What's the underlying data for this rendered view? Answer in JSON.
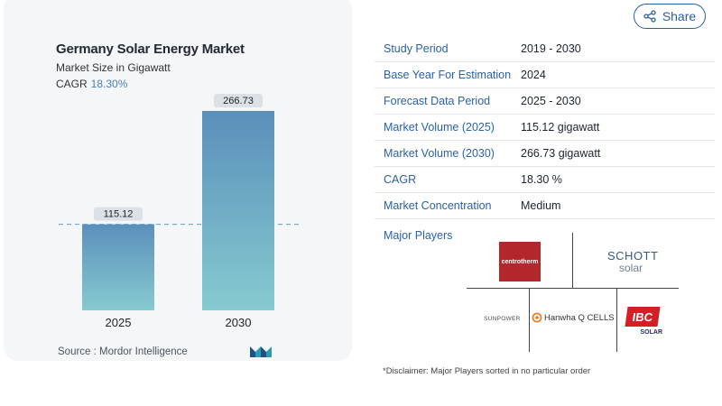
{
  "chart_data": {
    "type": "bar",
    "title": "Germany Solar Energy Market",
    "subtitle": "Market Size in Gigawatt",
    "cagr_label": "CAGR",
    "cagr_value": "18.30%",
    "categories": [
      "2025",
      "2030"
    ],
    "values": [
      115.12,
      266.73
    ],
    "value_labels": [
      "115.12",
      "266.73"
    ],
    "ylim": [
      0,
      266.73
    ],
    "grid": false,
    "reference_line_at": 115.12,
    "colors": {
      "bar_top": "#5b8fbb",
      "bar_bottom": "#86cbd0",
      "label_bg": "#dbe1e7",
      "ref_line": "#6a9bc9"
    }
  },
  "source": "Source :  Mordor Intelligence",
  "share": {
    "label": "Share",
    "icon": "share-icon"
  },
  "details": [
    {
      "label": "Study Period",
      "value": "2019 - 2030"
    },
    {
      "label": "Base Year For Estimation",
      "value": "2024"
    },
    {
      "label": "Forecast Data Period",
      "value": "2025 - 2030"
    },
    {
      "label": "Market Volume (2025)",
      "value": "115.12 gigawatt"
    },
    {
      "label": "Market Volume (2030)",
      "value": "266.73 gigawatt"
    },
    {
      "label": "CAGR",
      "value": "18.30 %"
    },
    {
      "label": "Market Concentration",
      "value": "Medium"
    }
  ],
  "players": {
    "label": "Major Players",
    "logos": {
      "centrotherm": "centrotherm",
      "schott_1": "SCHOTT",
      "schott_2": "solar",
      "sunpower": "SUNPOWER",
      "hanwha": "Hanwha Q CELLS",
      "ibc_1": "IBC",
      "ibc_2": "SOLAR"
    }
  },
  "disclaimer": "*Disclaimer: Major Players sorted in no particular order"
}
